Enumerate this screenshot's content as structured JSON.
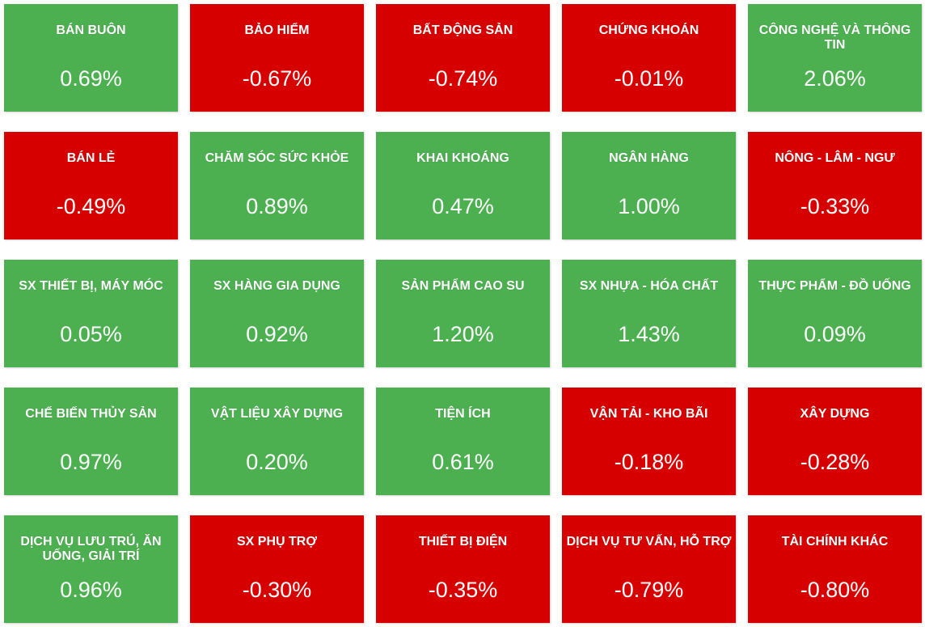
{
  "colors": {
    "up": "#4caf50",
    "down": "#d60000",
    "text": "#ffffff"
  },
  "sectors": [
    {
      "name": "BÁN BUÔN",
      "change": "0.69%",
      "trend": "up"
    },
    {
      "name": "BẢO HIỂM",
      "change": "-0.67%",
      "trend": "down"
    },
    {
      "name": "BẤT ĐỘNG SẢN",
      "change": "-0.74%",
      "trend": "down"
    },
    {
      "name": "CHỨNG KHOÁN",
      "change": "-0.01%",
      "trend": "down"
    },
    {
      "name": "CÔNG NGHỆ VÀ THÔNG TIN",
      "change": "2.06%",
      "trend": "up"
    },
    {
      "name": "BÁN LẺ",
      "change": "-0.49%",
      "trend": "down"
    },
    {
      "name": "CHĂM SÓC SỨC KHỎE",
      "change": "0.89%",
      "trend": "up"
    },
    {
      "name": "KHAI KHOÁNG",
      "change": "0.47%",
      "trend": "up"
    },
    {
      "name": "NGÂN HÀNG",
      "change": "1.00%",
      "trend": "up"
    },
    {
      "name": "NÔNG - LÂM - NGƯ",
      "change": "-0.33%",
      "trend": "down"
    },
    {
      "name": "SX THIẾT BỊ, MÁY MÓC",
      "change": "0.05%",
      "trend": "up"
    },
    {
      "name": "SX HÀNG GIA DỤNG",
      "change": "0.92%",
      "trend": "up"
    },
    {
      "name": "SẢN PHẨM CAO SU",
      "change": "1.20%",
      "trend": "up"
    },
    {
      "name": "SX NHỰA - HÓA CHẤT",
      "change": "1.43%",
      "trend": "up"
    },
    {
      "name": "THỰC PHẨM - ĐỒ UỐNG",
      "change": "0.09%",
      "trend": "up"
    },
    {
      "name": "CHẾ BIẾN THỦY SẢN",
      "change": "0.97%",
      "trend": "up"
    },
    {
      "name": "VẬT LIỆU XÂY DỰNG",
      "change": "0.20%",
      "trend": "up"
    },
    {
      "name": "TIỆN ÍCH",
      "change": "0.61%",
      "trend": "up"
    },
    {
      "name": "VẬN TẢI - KHO BÃI",
      "change": "-0.18%",
      "trend": "down"
    },
    {
      "name": "XÂY DỰNG",
      "change": "-0.28%",
      "trend": "down"
    },
    {
      "name": "DỊCH VỤ LƯU TRÚ, ĂN UỐNG, GIẢI TRÍ",
      "change": "0.96%",
      "trend": "up"
    },
    {
      "name": "SX PHỤ TRỢ",
      "change": "-0.30%",
      "trend": "down"
    },
    {
      "name": "THIẾT BỊ ĐIỆN",
      "change": "-0.35%",
      "trend": "down"
    },
    {
      "name": "DỊCH VỤ TƯ VẤN, HỖ TRỢ",
      "change": "-0.79%",
      "trend": "down"
    },
    {
      "name": "TÀI CHÍNH KHÁC",
      "change": "-0.80%",
      "trend": "down"
    }
  ]
}
